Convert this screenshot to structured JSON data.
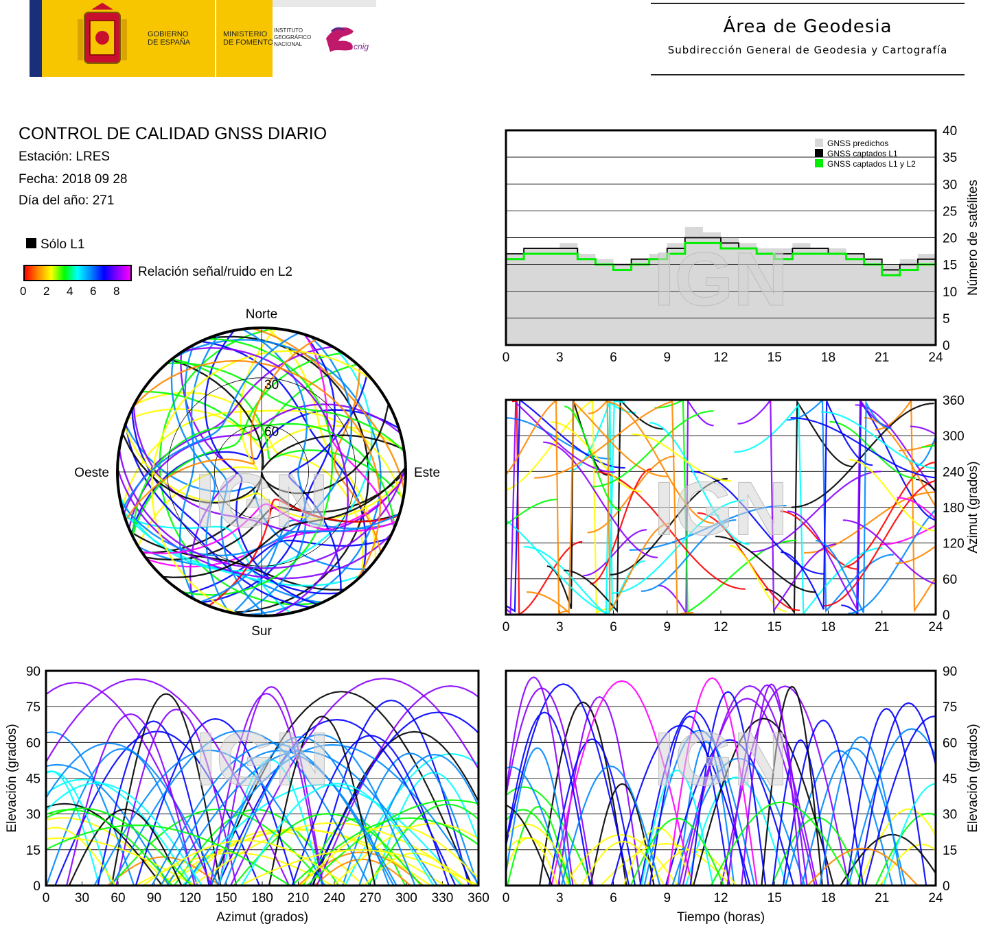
{
  "header": {
    "gobierno": "GOBIERNO\nDE ESPAÑA",
    "ministerio": "MINISTERIO\nDE FOMENTO",
    "instituto": "INSTITUTO\nGEOGRÁFICO\nNACIONAL",
    "cnig": "cnig",
    "area_title": "Área de Geodesia",
    "area_subtitle": "Subdirección General de Geodesia y Cartografía"
  },
  "report": {
    "title": "CONTROL DE CALIDAD GNSS DIARIO",
    "station": "Estación: LRES",
    "date": "Fecha: 2018 09 28",
    "doy": "Día del año: 271"
  },
  "legend": {
    "solo_l1": "Sólo L1",
    "snr_label": "Relación señal/ruido en L2",
    "snr_ticks": [
      "0",
      "2",
      "4",
      "6",
      "8"
    ],
    "colorbar": [
      "#ff0000",
      "#ff8800",
      "#ffff00",
      "#00ff00",
      "#00ffff",
      "#0088ff",
      "#0000ff",
      "#8800ff",
      "#ff00ff"
    ]
  },
  "watermark": "IGN",
  "chart_data": [
    {
      "type": "step",
      "id": "num-sats",
      "ylabel": "Número de satélites",
      "xlim": [
        0,
        24
      ],
      "ylim": [
        0,
        40
      ],
      "xticks": [
        "0",
        "3",
        "6",
        "9",
        "12",
        "15",
        "18",
        "21",
        "24"
      ],
      "yticks": [
        "0",
        "5",
        "10",
        "15",
        "20",
        "25",
        "30",
        "35",
        "40"
      ],
      "legend_position": "top-right",
      "series": [
        {
          "name": "GNSS predichos",
          "color": "#d8d8d8",
          "x": [
            0,
            1,
            2,
            3,
            4,
            5,
            6,
            7,
            8,
            9,
            10,
            11,
            12,
            13,
            14,
            15,
            16,
            17,
            18,
            19,
            20,
            21,
            22,
            23,
            24
          ],
          "values": [
            17,
            18,
            18,
            19,
            17,
            16,
            15,
            16,
            17,
            19,
            22,
            21,
            20,
            19,
            18,
            18,
            19,
            18,
            18,
            17,
            16,
            15,
            16,
            17,
            17
          ]
        },
        {
          "name": "GNSS captados L1",
          "color": "#000000",
          "x": [
            0,
            1,
            2,
            3,
            4,
            5,
            6,
            7,
            8,
            9,
            10,
            11,
            12,
            13,
            14,
            15,
            16,
            17,
            18,
            19,
            20,
            21,
            22,
            23,
            24
          ],
          "values": [
            17,
            18,
            18,
            18,
            16,
            15,
            15,
            16,
            16,
            18,
            20,
            20,
            19,
            18,
            17,
            17,
            18,
            18,
            17,
            17,
            16,
            14,
            15,
            16,
            16
          ]
        },
        {
          "name": "GNSS captados L1 y L2",
          "color": "#00ee00",
          "x": [
            0,
            1,
            2,
            3,
            4,
            5,
            6,
            7,
            8,
            9,
            10,
            11,
            12,
            13,
            14,
            15,
            16,
            17,
            18,
            19,
            20,
            21,
            22,
            23,
            24
          ],
          "values": [
            16,
            17,
            17,
            17,
            16,
            15,
            14,
            15,
            16,
            17,
            19,
            19,
            18,
            18,
            17,
            16,
            17,
            17,
            17,
            16,
            15,
            13,
            14,
            15,
            15
          ]
        }
      ]
    },
    {
      "type": "polar-skyplot",
      "id": "skyplot",
      "labels": {
        "n": "Norte",
        "s": "Sur",
        "e": "Este",
        "w": "Oeste"
      },
      "rings": [
        "30",
        "60"
      ]
    },
    {
      "type": "scatter",
      "id": "azimut-tiempo",
      "ylabel": "Azimut (grados)",
      "xlim": [
        0,
        24
      ],
      "ylim": [
        0,
        360
      ],
      "xticks": [
        "0",
        "3",
        "6",
        "9",
        "12",
        "15",
        "18",
        "21",
        "24"
      ],
      "yticks": [
        "0",
        "60",
        "120",
        "180",
        "240",
        "300",
        "360"
      ]
    },
    {
      "type": "scatter",
      "id": "elev-azimut",
      "xlabel": "Azimut (grados)",
      "ylabel": "Elevación (grados)",
      "xlim": [
        0,
        360
      ],
      "ylim": [
        0,
        90
      ],
      "xticks": [
        "0",
        "30",
        "60",
        "90",
        "120",
        "150",
        "180",
        "210",
        "240",
        "270",
        "300",
        "330",
        "360"
      ],
      "yticks": [
        "0",
        "15",
        "30",
        "45",
        "60",
        "75",
        "90"
      ]
    },
    {
      "type": "scatter",
      "id": "elev-tiempo",
      "xlabel": "Tiempo (horas)",
      "ylabel": "Elevación (grados)",
      "xlim": [
        0,
        24
      ],
      "ylim": [
        0,
        90
      ],
      "xticks": [
        "0",
        "3",
        "6",
        "9",
        "12",
        "15",
        "18",
        "21",
        "24"
      ],
      "yticks": [
        "0",
        "15",
        "30",
        "45",
        "60",
        "75",
        "90"
      ]
    }
  ]
}
